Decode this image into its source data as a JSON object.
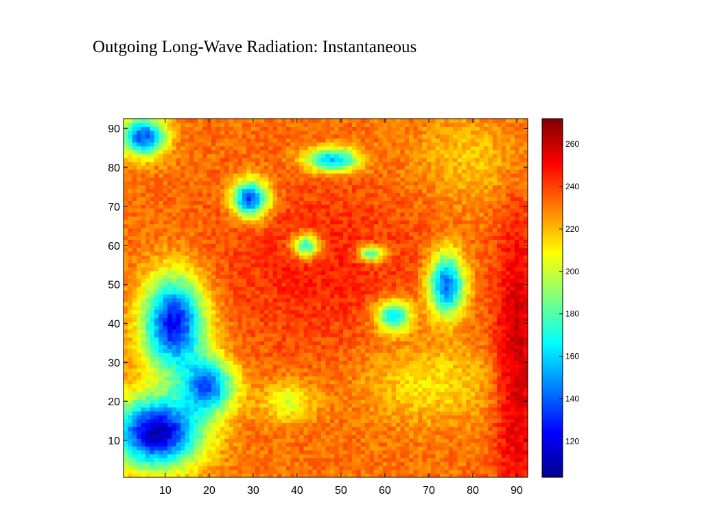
{
  "slide": {
    "title": "Outgoing Long-Wave Radiation:  Instantaneous"
  },
  "chart_data": {
    "type": "heatmap",
    "title": "",
    "xlabel": "",
    "ylabel": "",
    "xlim": [
      0.5,
      92.5
    ],
    "ylim": [
      0.5,
      92.5
    ],
    "x_ticks": [
      10,
      20,
      30,
      40,
      50,
      60,
      70,
      80,
      90
    ],
    "y_ticks": [
      10,
      20,
      30,
      40,
      50,
      60,
      70,
      80,
      90
    ],
    "grid": false,
    "colormap": "jet",
    "colorbar": {
      "range": [
        103,
        272
      ],
      "ticks": [
        120,
        140,
        160,
        180,
        200,
        220,
        240,
        260
      ]
    },
    "field_summary": [
      {
        "region": "cold cloud band, lower-left (x 1-20, y 1-50)",
        "approx_value": 125
      },
      {
        "region": "cold cloud patches, upper-left (x 1-8, y 82-92)",
        "approx_value": 130
      },
      {
        "region": "cold streak, center-right (x 70-80, y 40-58)",
        "approx_value": 140
      },
      {
        "region": "cold blobs, top-center (x 40-55, y 75-87)",
        "approx_value": 155
      },
      {
        "region": "warm belt, center (x 25-70, y 35-75)",
        "approx_value": 248
      },
      {
        "region": "moderate plume, lower-right (x 55-85, y 10-40)",
        "approx_value": 215
      },
      {
        "region": "hottest corner, right edge (x 82-92, y 1-65)",
        "approx_value": 262
      },
      {
        "region": "upper-right background (x 65-92, y 70-92)",
        "approx_value": 218
      }
    ]
  }
}
